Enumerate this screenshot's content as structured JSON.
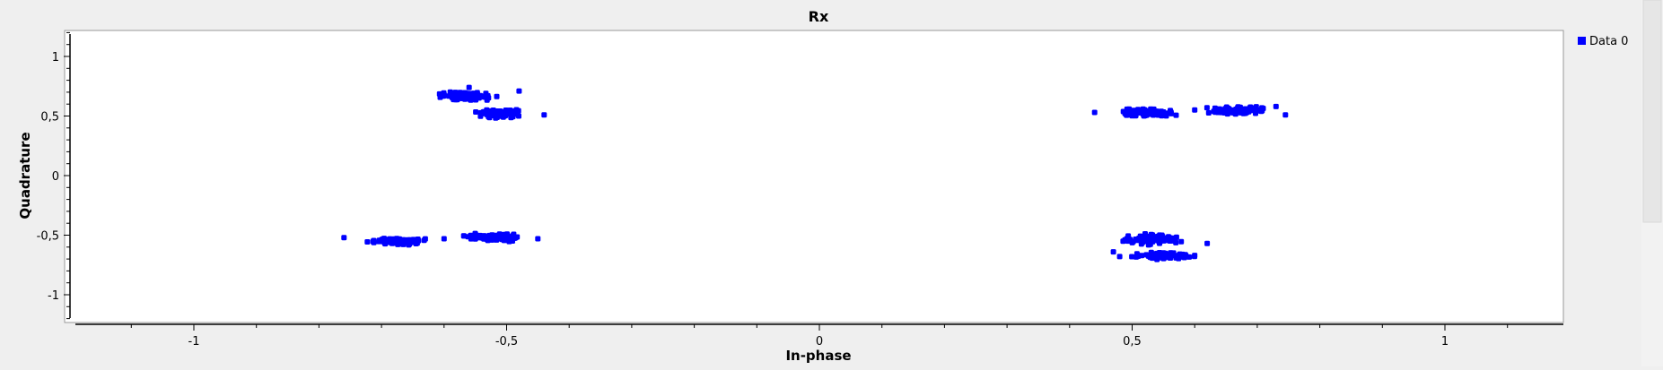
{
  "chart_data": {
    "type": "scatter",
    "title": "Rx",
    "xlabel": "In-phase",
    "ylabel": "Quadrature",
    "xlim": [
      -1.19,
      1.19
    ],
    "ylim": [
      -1.22,
      1.22
    ],
    "grid": false,
    "legend_position": "top-right",
    "x_ticks": [
      {
        "value": -1,
        "label": "-1"
      },
      {
        "value": -0.5,
        "label": "-0,5"
      },
      {
        "value": 0,
        "label": "0"
      },
      {
        "value": 0.5,
        "label": "0,5"
      },
      {
        "value": 1,
        "label": "1"
      }
    ],
    "y_ticks": [
      {
        "value": 1,
        "label": "1"
      },
      {
        "value": 0.5,
        "label": "0,5"
      },
      {
        "value": 0,
        "label": "0"
      },
      {
        "value": -0.5,
        "label": "-0,5"
      },
      {
        "value": -1,
        "label": "-1"
      }
    ],
    "series": [
      {
        "name": "Data 0",
        "color": "#0000ff",
        "clusters": [
          {
            "x": [
              -0.62,
              -0.51
            ],
            "y": [
              0.62,
              0.71
            ],
            "n": 110
          },
          {
            "x": [
              -0.56,
              -0.47
            ],
            "y": [
              0.48,
              0.57
            ],
            "n": 90
          },
          {
            "x": [
              -0.73,
              -0.62
            ],
            "y": [
              -0.59,
              -0.51
            ],
            "n": 95
          },
          {
            "x": [
              -0.58,
              -0.46
            ],
            "y": [
              -0.56,
              -0.48
            ],
            "n": 100
          },
          {
            "x": [
              0.46,
              0.58
            ],
            "y": [
              0.48,
              0.57
            ],
            "n": 100
          },
          {
            "x": [
              0.61,
              0.73
            ],
            "y": [
              0.5,
              0.59
            ],
            "n": 95
          },
          {
            "x": [
              0.47,
              0.59
            ],
            "y": [
              -0.59,
              -0.48
            ],
            "n": 95
          },
          {
            "x": [
              0.49,
              0.61
            ],
            "y": [
              -0.71,
              -0.63
            ],
            "n": 95
          }
        ],
        "outliers": [
          [
            -0.56,
            0.74
          ],
          [
            -0.48,
            0.71
          ],
          [
            -0.53,
            0.67
          ],
          [
            -0.44,
            0.51
          ],
          [
            -0.6,
            -0.53
          ],
          [
            -0.76,
            -0.52
          ],
          [
            -0.45,
            -0.53
          ],
          [
            0.745,
            0.51
          ],
          [
            0.73,
            0.58
          ],
          [
            0.6,
            0.55
          ],
          [
            0.44,
            0.53
          ],
          [
            0.62,
            -0.57
          ],
          [
            0.47,
            -0.64
          ],
          [
            0.48,
            -0.68
          ],
          [
            0.6,
            -0.67
          ]
        ]
      }
    ]
  }
}
